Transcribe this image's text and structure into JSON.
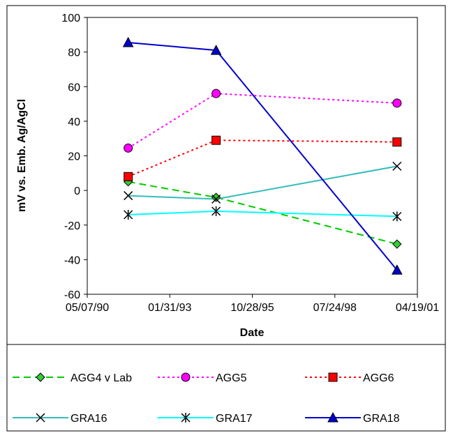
{
  "chart_data": {
    "type": "line",
    "xlabel": "Date",
    "ylabel": "mV vs. Emb. Ag/AgCl",
    "x_tick_labels": [
      "05/07/90",
      "01/31/93",
      "10/28/95",
      "07/24/98",
      "04/19/01"
    ],
    "x_tick_dates": [
      "1990-05-07",
      "1993-01-31",
      "1995-10-28",
      "1998-07-24",
      "2001-04-19"
    ],
    "xlim": [
      "1990-05-07",
      "2001-04-19"
    ],
    "ylim": [
      -60,
      100
    ],
    "y_ticks": [
      -60,
      -40,
      -20,
      0,
      20,
      40,
      60,
      80,
      100
    ],
    "grid": false,
    "legend_position": "bottom",
    "series": [
      {
        "name": "AGG4 v Lab",
        "color": "#00cc00",
        "dash": "long-dash",
        "marker": "diamond",
        "marker_fill": "#33cc33",
        "points": [
          [
            "1991-09-15",
            5
          ],
          [
            "1994-08-15",
            -4
          ],
          [
            "2000-08-15",
            -31
          ]
        ]
      },
      {
        "name": "AGG5",
        "color": "#ff00ff",
        "dash": "dot",
        "marker": "circle",
        "marker_fill": "#ff00ff",
        "points": [
          [
            "1991-09-15",
            24.5
          ],
          [
            "1994-08-15",
            56
          ],
          [
            "2000-08-15",
            50.5
          ]
        ]
      },
      {
        "name": "AGG6",
        "color": "#ff0000",
        "dash": "dot",
        "marker": "square",
        "marker_fill": "#ff0000",
        "points": [
          [
            "1991-09-15",
            8
          ],
          [
            "1994-08-15",
            29
          ],
          [
            "2000-08-15",
            28
          ]
        ]
      },
      {
        "name": "GRA16",
        "color": "#33bbbb",
        "dash": "solid",
        "marker": "x",
        "marker_fill": "none",
        "points": [
          [
            "1991-09-15",
            -3
          ],
          [
            "1994-08-15",
            -5
          ],
          [
            "2000-08-15",
            14
          ]
        ]
      },
      {
        "name": "GRA17",
        "color": "#00ffff",
        "dash": "solid",
        "marker": "star",
        "marker_fill": "none",
        "points": [
          [
            "1991-09-15",
            -14
          ],
          [
            "1994-08-15",
            -12
          ],
          [
            "2000-08-15",
            -15
          ]
        ]
      },
      {
        "name": "GRA18",
        "color": "#0000cc",
        "dash": "solid",
        "marker": "triangle",
        "marker_fill": "#0000cc",
        "points": [
          [
            "1991-09-15",
            85.5
          ],
          [
            "1994-08-15",
            81
          ],
          [
            "2000-08-15",
            -46
          ]
        ]
      }
    ]
  }
}
